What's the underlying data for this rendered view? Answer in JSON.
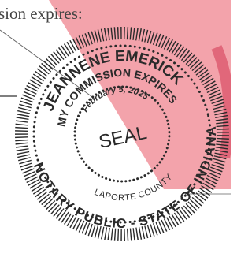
{
  "partial_text": "sion expires:",
  "seal": {
    "name": "JEANNENE EMERICK",
    "commission": "MY COMMISSION EXPIRES",
    "date": "February 5, 2025",
    "center": "SEAL",
    "county": "LAPORTE COUNTY",
    "state": "NOTARY PUBLIC - STATE OF INDIANA"
  }
}
